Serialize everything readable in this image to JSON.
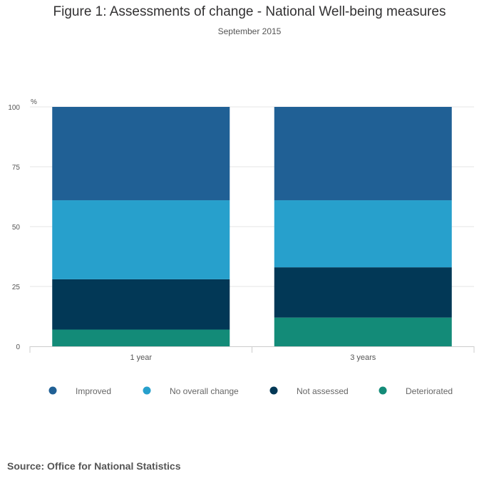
{
  "chart_data": {
    "type": "bar",
    "stacked": true,
    "title": "Figure 1: Assessments of change - National Well-being measures",
    "subtitle": "September 2015",
    "ylabel": "%",
    "ylim": [
      0,
      100
    ],
    "yticks": [
      0,
      25,
      50,
      75,
      100
    ],
    "categories": [
      "1 year",
      "3 years"
    ],
    "series": [
      {
        "name": "Deteriorated",
        "color": "#138b78",
        "values": [
          7,
          12
        ]
      },
      {
        "name": "Not assessed",
        "color": "#023856",
        "values": [
          21,
          21
        ]
      },
      {
        "name": "No overall change",
        "color": "#27a0cc",
        "values": [
          33,
          28
        ]
      },
      {
        "name": "Improved",
        "color": "#206095",
        "values": [
          39,
          39
        ]
      }
    ],
    "legend": {
      "position": "bottom",
      "order": [
        "Improved",
        "No overall change",
        "Not assessed",
        "Deteriorated"
      ]
    }
  },
  "source": "Source: Office for National Statistics"
}
